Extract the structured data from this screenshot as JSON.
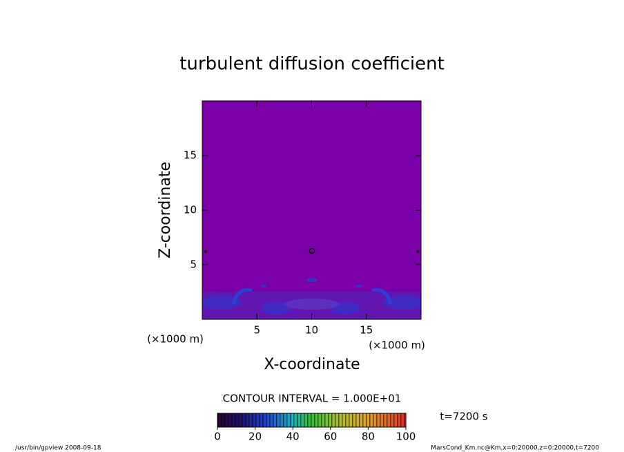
{
  "chart_data": {
    "type": "contour",
    "title": "turbulent diffusion coefficient",
    "xlabel": "X-coordinate",
    "ylabel": "Z-coordinate",
    "x_unit": "(×1000 m)",
    "y_unit": "(×1000 m)",
    "xlim": [
      0,
      20
    ],
    "ylim": [
      0,
      20
    ],
    "xticks": [
      5,
      10,
      15
    ],
    "yticks": [
      5,
      10,
      15
    ],
    "contour_label": "CONTOUR INTERVAL = 1.000E+01",
    "colorbar": {
      "lim": [
        0,
        100
      ],
      "ticks": [
        0,
        20,
        40,
        60,
        80,
        100
      ]
    },
    "time_label": "t=7200 s",
    "footer_left": "/usr/bin/gpview   2008-09-18",
    "footer_right": "MarsCond_Km.nc@Km,x=0:20000,z=0:20000,t=7200"
  }
}
